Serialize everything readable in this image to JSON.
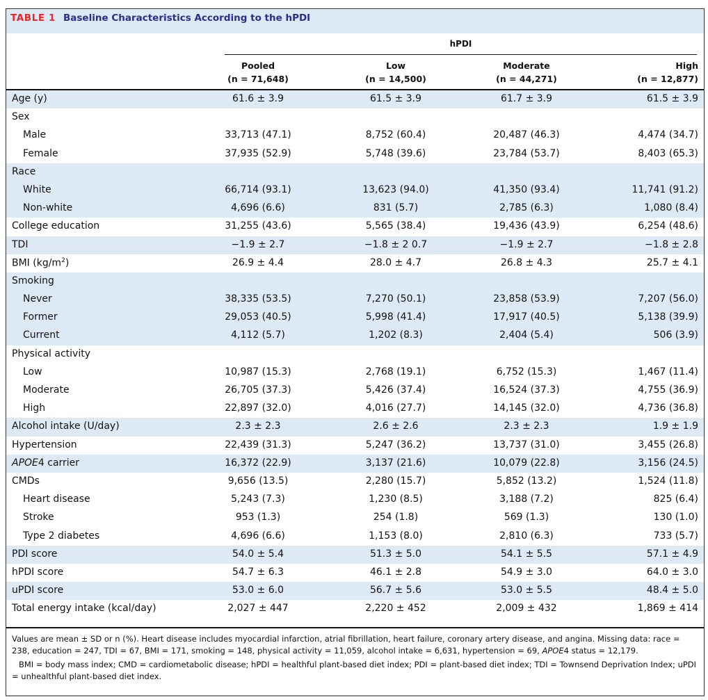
{
  "table": {
    "label": "TABLE 1",
    "title": "Baseline Characteristics According to the hPDI",
    "group_header": "hPDI",
    "columns": [
      {
        "name": "Pooled",
        "n": "(n = 71,648)"
      },
      {
        "name": "Low",
        "n": "(n = 14,500)"
      },
      {
        "name": "Moderate",
        "n": "(n = 44,271)"
      },
      {
        "name": "High",
        "n": "(n = 12,877)"
      }
    ],
    "rows": [
      {
        "label": "Age (y)",
        "values": [
          "61.6 ± 3.9",
          "61.5 ± 3.9",
          "61.7 ± 3.9",
          "61.5 ± 3.9"
        ]
      },
      {
        "label": "Sex",
        "values": [
          "",
          "",
          "",
          ""
        ]
      },
      {
        "label": "Male",
        "values": [
          "33,713 (47.1)",
          "8,752 (60.4)",
          "20,487 (46.3)",
          "4,474 (34.7)"
        ]
      },
      {
        "label": "Female",
        "values": [
          "37,935 (52.9)",
          "5,748 (39.6)",
          "23,784 (53.7)",
          "8,403 (65.3)"
        ]
      },
      {
        "label": "Race",
        "values": [
          "",
          "",
          "",
          ""
        ]
      },
      {
        "label": "White",
        "values": [
          "66,714 (93.1)",
          "13,623 (94.0)",
          "41,350 (93.4)",
          "11,741 (91.2)"
        ]
      },
      {
        "label": "Non-white",
        "values": [
          "4,696 (6.6)",
          "831 (5.7)",
          "2,785 (6.3)",
          "1,080 (8.4)"
        ]
      },
      {
        "label": "College education",
        "values": [
          "31,255 (43.6)",
          "5,565 (38.4)",
          "19,436 (43.9)",
          "6,254 (48.6)"
        ]
      },
      {
        "label": "TDI",
        "values": [
          "−1.9 ± 2.7",
          "−1.8 ± 2 0.7",
          "−1.9 ± 2.7",
          "−1.8 ± 2.8"
        ]
      },
      {
        "label": "BMI (kg/m",
        "label_sup": "2",
        "label_after": ")",
        "values": [
          "26.9 ± 4.4",
          "28.0 ± 4.7",
          "26.8 ± 4.3",
          "25.7 ± 4.1"
        ]
      },
      {
        "label": "Smoking",
        "values": [
          "",
          "",
          "",
          ""
        ]
      },
      {
        "label": "Never",
        "values": [
          "38,335 (53.5)",
          "7,270 (50.1)",
          "23,858 (53.9)",
          "7,207 (56.0)"
        ]
      },
      {
        "label": "Former",
        "values": [
          "29,053 (40.5)",
          "5,998 (41.4)",
          "17,917 (40.5)",
          "5,138 (39.9)"
        ]
      },
      {
        "label": "Current",
        "values": [
          "4,112 (5.7)",
          "1,202 (8.3)",
          "2,404 (5.4)",
          "506 (3.9)"
        ]
      },
      {
        "label": "Physical activity",
        "values": [
          "",
          "",
          "",
          ""
        ]
      },
      {
        "label": "Low",
        "values": [
          "10,987 (15.3)",
          "2,768 (19.1)",
          "6,752 (15.3)",
          "1,467 (11.4)"
        ]
      },
      {
        "label": "Moderate",
        "values": [
          "26,705 (37.3)",
          "5,426 (37.4)",
          "16,524 (37.3)",
          "4,755 (36.9)"
        ]
      },
      {
        "label": "High",
        "values": [
          "22,897 (32.0)",
          "4,016 (27.7)",
          "14,145 (32.0)",
          "4,736 (36.8)"
        ]
      },
      {
        "label": "Alcohol intake (U/day)",
        "values": [
          "2.3 ± 2.3",
          "2.6 ± 2.6",
          "2.3 ± 2.3",
          "1.9 ± 1.9"
        ]
      },
      {
        "label": "Hypertension",
        "values": [
          "22,439 (31.3)",
          "5,247 (36.2)",
          "13,737 (31.0)",
          "3,455 (26.8)"
        ]
      },
      {
        "label_italic": "APOE",
        "label": "4 carrier",
        "values": [
          "16,372 (22.9)",
          "3,137 (21.6)",
          "10,079 (22.8)",
          "3,156 (24.5)"
        ]
      },
      {
        "label": "CMDs",
        "values": [
          "9,656 (13.5)",
          "2,280 (15.7)",
          "5,852 (13.2)",
          "1,524 (11.8)"
        ]
      },
      {
        "label": "Heart disease",
        "values": [
          "5,243 (7.3)",
          "1,230 (8.5)",
          "3,188 (7.2)",
          "825 (6.4)"
        ]
      },
      {
        "label": "Stroke",
        "values": [
          "953 (1.3)",
          "254 (1.8)",
          "569 (1.3)",
          "130 (1.0)"
        ]
      },
      {
        "label": "Type 2 diabetes",
        "values": [
          "4,696 (6.6)",
          "1,153 (8.0)",
          "2,810 (6.3)",
          "733 (5.7)"
        ]
      },
      {
        "label": "PDI score",
        "values": [
          "54.0 ± 5.4",
          "51.3 ± 5.0",
          "54.1 ± 5.5",
          "57.1 ± 4.9"
        ]
      },
      {
        "label": "hPDI score",
        "values": [
          "54.7 ± 6.3",
          "46.1 ± 2.8",
          "54.9 ± 3.0",
          "64.0 ± 3.0"
        ]
      },
      {
        "label": "uPDI score",
        "values": [
          "53.0 ± 6.0",
          "56.7 ± 5.6",
          "53.0 ± 5.5",
          "48.4 ± 5.0"
        ]
      },
      {
        "label": "Total energy intake (kcal/day)",
        "values": [
          "2,027 ± 447",
          "2,220 ± 452",
          "2,009 ± 432",
          "1,869 ± 414"
        ]
      }
    ],
    "footnote": {
      "line1_a": "Values are mean ± SD or n (%). Heart disease includes myocardial infarction, atrial fibrillation, heart failure, coronary artery disease, and angina. Missing data: race = 238, education = 247, TDI = 67, BMI = 171, smoking = 148, physical activity = 11,059, alcohol intake = 6,631, hypertension = 69, ",
      "line1_italic": "APOE",
      "line1_b": "4 status = 12,179.",
      "line2": "BMI = body mass index; CMD = cardiometabolic disease; hPDI = healthful plant-based diet index; PDI = plant-based diet index; TDI = Townsend Deprivation Index; uPDI = unhealthful plant-based diet index."
    }
  },
  "colors": {
    "label_red": "#e8262c",
    "title_navy": "#2b2f8c",
    "row_shade": "#dde9f5"
  }
}
